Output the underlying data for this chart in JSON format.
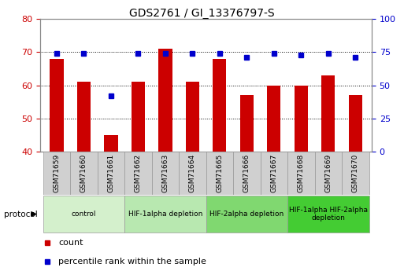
{
  "title": "GDS2761 / GI_13376797-S",
  "samples": [
    "GSM71659",
    "GSM71660",
    "GSM71661",
    "GSM71662",
    "GSM71663",
    "GSM71664",
    "GSM71665",
    "GSM71666",
    "GSM71667",
    "GSM71668",
    "GSM71669",
    "GSM71670"
  ],
  "counts": [
    68,
    61,
    45,
    61,
    71,
    61,
    68,
    57,
    60,
    60,
    63,
    57
  ],
  "percentiles": [
    74,
    74,
    42,
    74,
    74,
    74,
    74,
    71,
    74,
    73,
    74,
    71
  ],
  "ylim_left": [
    40,
    80
  ],
  "ylim_right": [
    0,
    100
  ],
  "yticks_left": [
    40,
    50,
    60,
    70,
    80
  ],
  "yticks_right": [
    0,
    25,
    50,
    75,
    100
  ],
  "bar_color": "#cc0000",
  "dot_color": "#0000cc",
  "plot_bg": "#ffffff",
  "fig_bg": "#ffffff",
  "grid_color": "#000000",
  "protocol_groups": [
    {
      "label": "control",
      "start": 0,
      "end": 2,
      "color": "#d4f0cc"
    },
    {
      "label": "HIF-1alpha depletion",
      "start": 3,
      "end": 5,
      "color": "#b8e8b0"
    },
    {
      "label": "HIF-2alpha depletion",
      "start": 6,
      "end": 8,
      "color": "#80d870"
    },
    {
      "label": "HIF-1alpha HIF-2alpha\ndepletion",
      "start": 9,
      "end": 11,
      "color": "#44cc33"
    }
  ],
  "legend_items": [
    {
      "label": "count",
      "color": "#cc0000"
    },
    {
      "label": "percentile rank within the sample",
      "color": "#0000cc"
    }
  ],
  "tick_label_color_left": "#cc0000",
  "tick_label_color_right": "#0000cc",
  "bar_width": 0.5,
  "sample_box_color": "#d0d0d0",
  "sample_box_edge": "#999999",
  "spine_color": "#888888"
}
